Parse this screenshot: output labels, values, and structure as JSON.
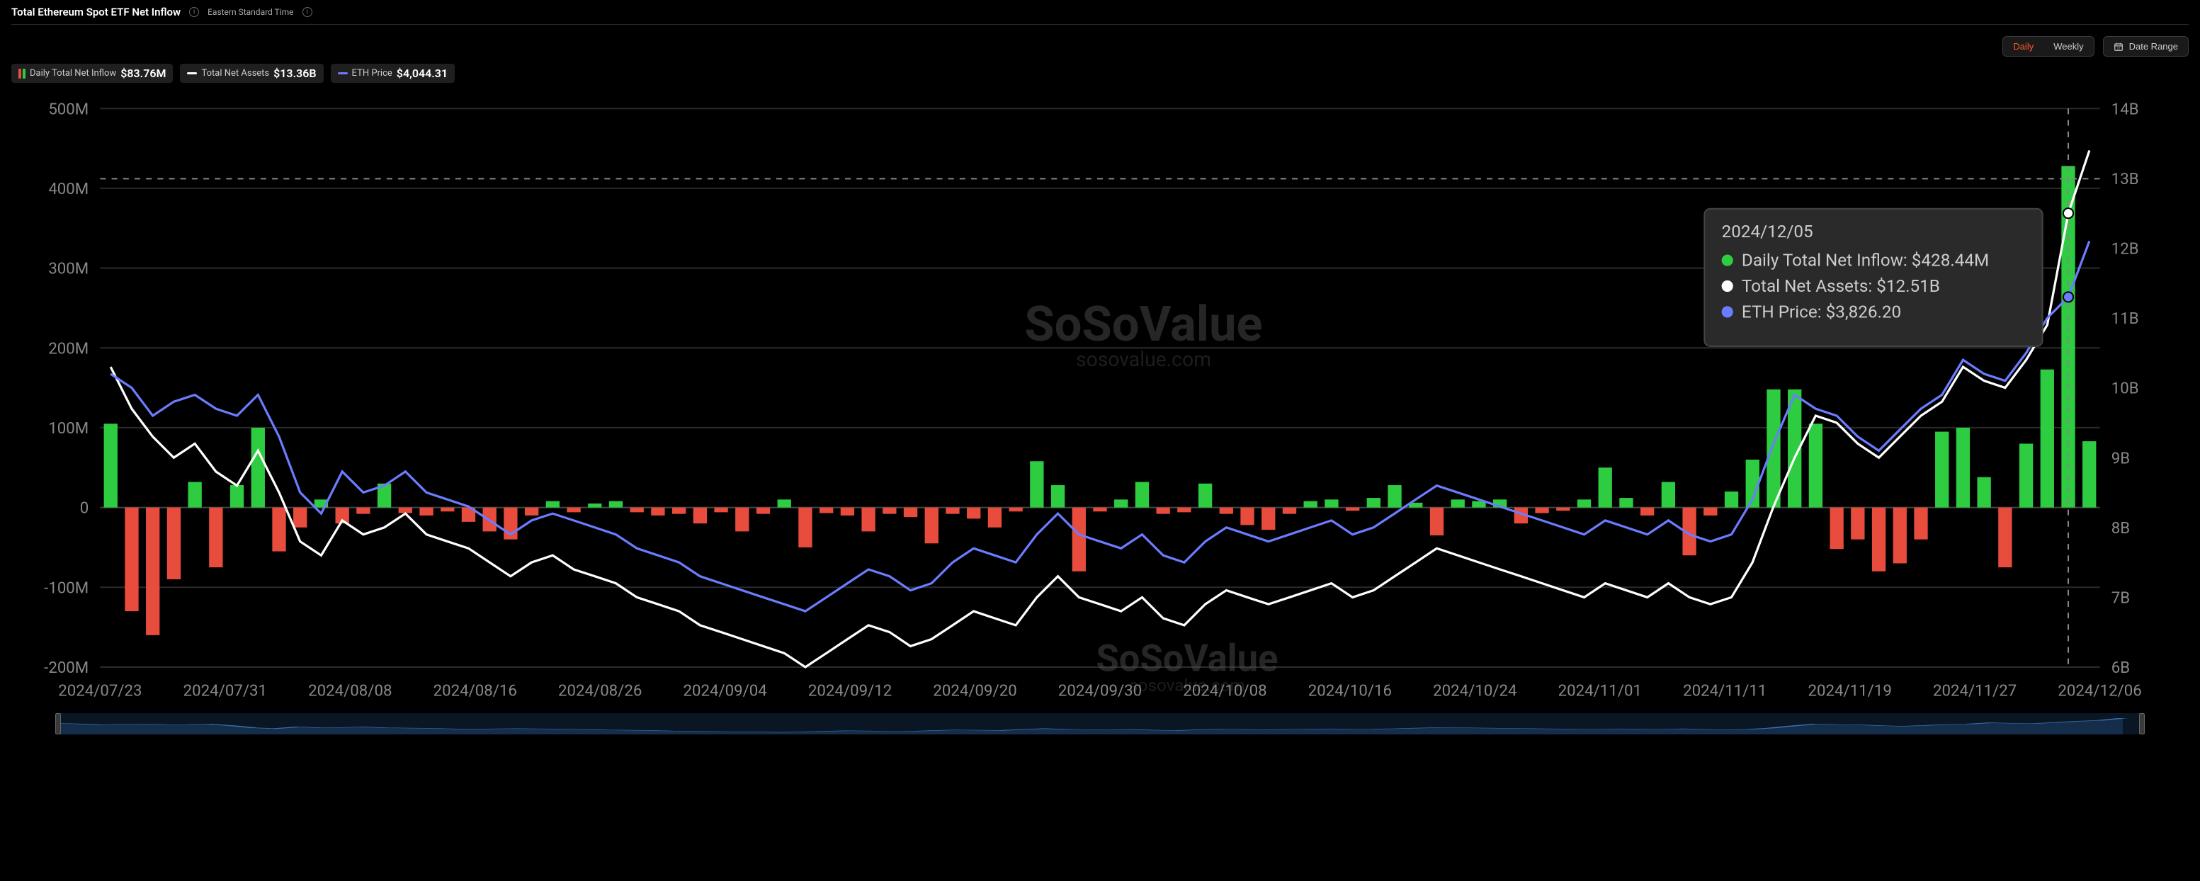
{
  "header": {
    "title": "Total Ethereum Spot ETF Net Inflow",
    "timezone": "Eastern Standard Time"
  },
  "controls": {
    "daily_label": "Daily",
    "weekly_label": "Weekly",
    "date_range_label": "Date Range"
  },
  "legend": {
    "inflow_label": "Daily Total Net Inflow",
    "inflow_value": "$83.76M",
    "assets_label": "Total Net Assets",
    "assets_value": "$13.36B",
    "price_label": "ETH Price",
    "price_value": "$4,044.31"
  },
  "tooltip": {
    "date": "2024/12/05",
    "inflow_label": "Daily Total Net Inflow: $428.44M",
    "assets_label": "Total Net Assets: $12.51B",
    "price_label": "ETH Price: $3,826.20"
  },
  "watermark": {
    "main": "SoSoValue",
    "sub": "sosovalue.com"
  },
  "chart": {
    "colors": {
      "bar_positive": "#2ecc40",
      "bar_negative": "#e74c3c",
      "assets_line": "#ffffff",
      "price_line": "#6b7cff",
      "background": "#000000",
      "grid": "#2a2a2a",
      "axis_text": "#888888",
      "dashed": "#888888",
      "tooltip_bg": "#2a2a2a"
    },
    "left_axis": {
      "min": -200,
      "max": 500,
      "step": 100,
      "unit": "M",
      "labels": [
        "-200M",
        "-100M",
        "0",
        "100M",
        "200M",
        "300M",
        "400M",
        "500M"
      ]
    },
    "right_axis": {
      "min": 6,
      "max": 14,
      "step": 1,
      "unit": "B",
      "labels": [
        "6B",
        "7B",
        "8B",
        "9B",
        "10B",
        "11B",
        "12B",
        "13B",
        "14B"
      ]
    },
    "x_ticks": [
      "2024/07/23",
      "2024/07/31",
      "2024/08/08",
      "2024/08/16",
      "2024/08/26",
      "2024/09/04",
      "2024/09/12",
      "2024/09/20",
      "2024/09/30",
      "2024/10/08",
      "2024/10/16",
      "2024/10/24",
      "2024/11/01",
      "2024/11/11",
      "2024/11/19",
      "2024/11/27",
      "2024/12/06"
    ],
    "bars": [
      105,
      -130,
      -160,
      -90,
      32,
      -75,
      28,
      100,
      -55,
      -25,
      10,
      -20,
      -8,
      30,
      -7,
      -10,
      -5,
      -18,
      -30,
      -40,
      -10,
      8,
      -6,
      5,
      8,
      -6,
      -10,
      -8,
      -20,
      -6,
      -30,
      -8,
      10,
      -50,
      -7,
      -10,
      -30,
      -8,
      -12,
      -45,
      -8,
      -14,
      -25,
      -5,
      58,
      28,
      -80,
      -5,
      10,
      32,
      -8,
      -6,
      30,
      -8,
      -22,
      -28,
      -8,
      8,
      10,
      -4,
      12,
      28,
      6,
      -35,
      10,
      8,
      10,
      -20,
      -7,
      -4,
      10,
      50,
      12,
      -10,
      32,
      -60,
      -10,
      20,
      60,
      148,
      148,
      105,
      -52,
      -40,
      -80,
      -70,
      -40,
      95,
      100,
      38,
      -75,
      80,
      173,
      428,
      83
    ],
    "assets_line_B": [
      10.3,
      9.7,
      9.3,
      9.0,
      9.2,
      8.8,
      8.6,
      9.1,
      8.5,
      7.8,
      7.6,
      8.1,
      7.9,
      8.0,
      8.2,
      7.9,
      7.8,
      7.7,
      7.5,
      7.3,
      7.5,
      7.6,
      7.4,
      7.3,
      7.2,
      7.0,
      6.9,
      6.8,
      6.6,
      6.5,
      6.4,
      6.3,
      6.2,
      6.0,
      6.2,
      6.4,
      6.6,
      6.5,
      6.3,
      6.4,
      6.6,
      6.8,
      6.7,
      6.6,
      7.0,
      7.3,
      7.0,
      6.9,
      6.8,
      7.0,
      6.7,
      6.6,
      6.9,
      7.1,
      7.0,
      6.9,
      7.0,
      7.1,
      7.2,
      7.0,
      7.1,
      7.3,
      7.5,
      7.7,
      7.6,
      7.5,
      7.4,
      7.3,
      7.2,
      7.1,
      7.0,
      7.2,
      7.1,
      7.0,
      7.2,
      7.0,
      6.9,
      7.0,
      7.5,
      8.3,
      9.0,
      9.6,
      9.5,
      9.2,
      9.0,
      9.3,
      9.6,
      9.8,
      10.3,
      10.1,
      10.0,
      10.4,
      10.9,
      12.5,
      13.4
    ],
    "price_line_B": [
      10.2,
      10.0,
      9.6,
      9.8,
      9.9,
      9.7,
      9.6,
      9.9,
      9.3,
      8.5,
      8.2,
      8.8,
      8.5,
      8.6,
      8.8,
      8.5,
      8.4,
      8.3,
      8.1,
      7.9,
      8.1,
      8.2,
      8.1,
      8.0,
      7.9,
      7.7,
      7.6,
      7.5,
      7.3,
      7.2,
      7.1,
      7.0,
      6.9,
      6.8,
      7.0,
      7.2,
      7.4,
      7.3,
      7.1,
      7.2,
      7.5,
      7.7,
      7.6,
      7.5,
      7.9,
      8.2,
      7.9,
      7.8,
      7.7,
      7.9,
      7.6,
      7.5,
      7.8,
      8.0,
      7.9,
      7.8,
      7.9,
      8.0,
      8.1,
      7.9,
      8.0,
      8.2,
      8.4,
      8.6,
      8.5,
      8.4,
      8.3,
      8.2,
      8.1,
      8.0,
      7.9,
      8.1,
      8.0,
      7.9,
      8.1,
      7.9,
      7.8,
      7.9,
      8.4,
      9.2,
      9.9,
      9.7,
      9.6,
      9.3,
      9.1,
      9.4,
      9.7,
      9.9,
      10.4,
      10.2,
      10.1,
      10.5,
      11.0,
      11.3,
      12.1
    ],
    "crosshair_index": 93,
    "crosshair_y_M": 412
  }
}
